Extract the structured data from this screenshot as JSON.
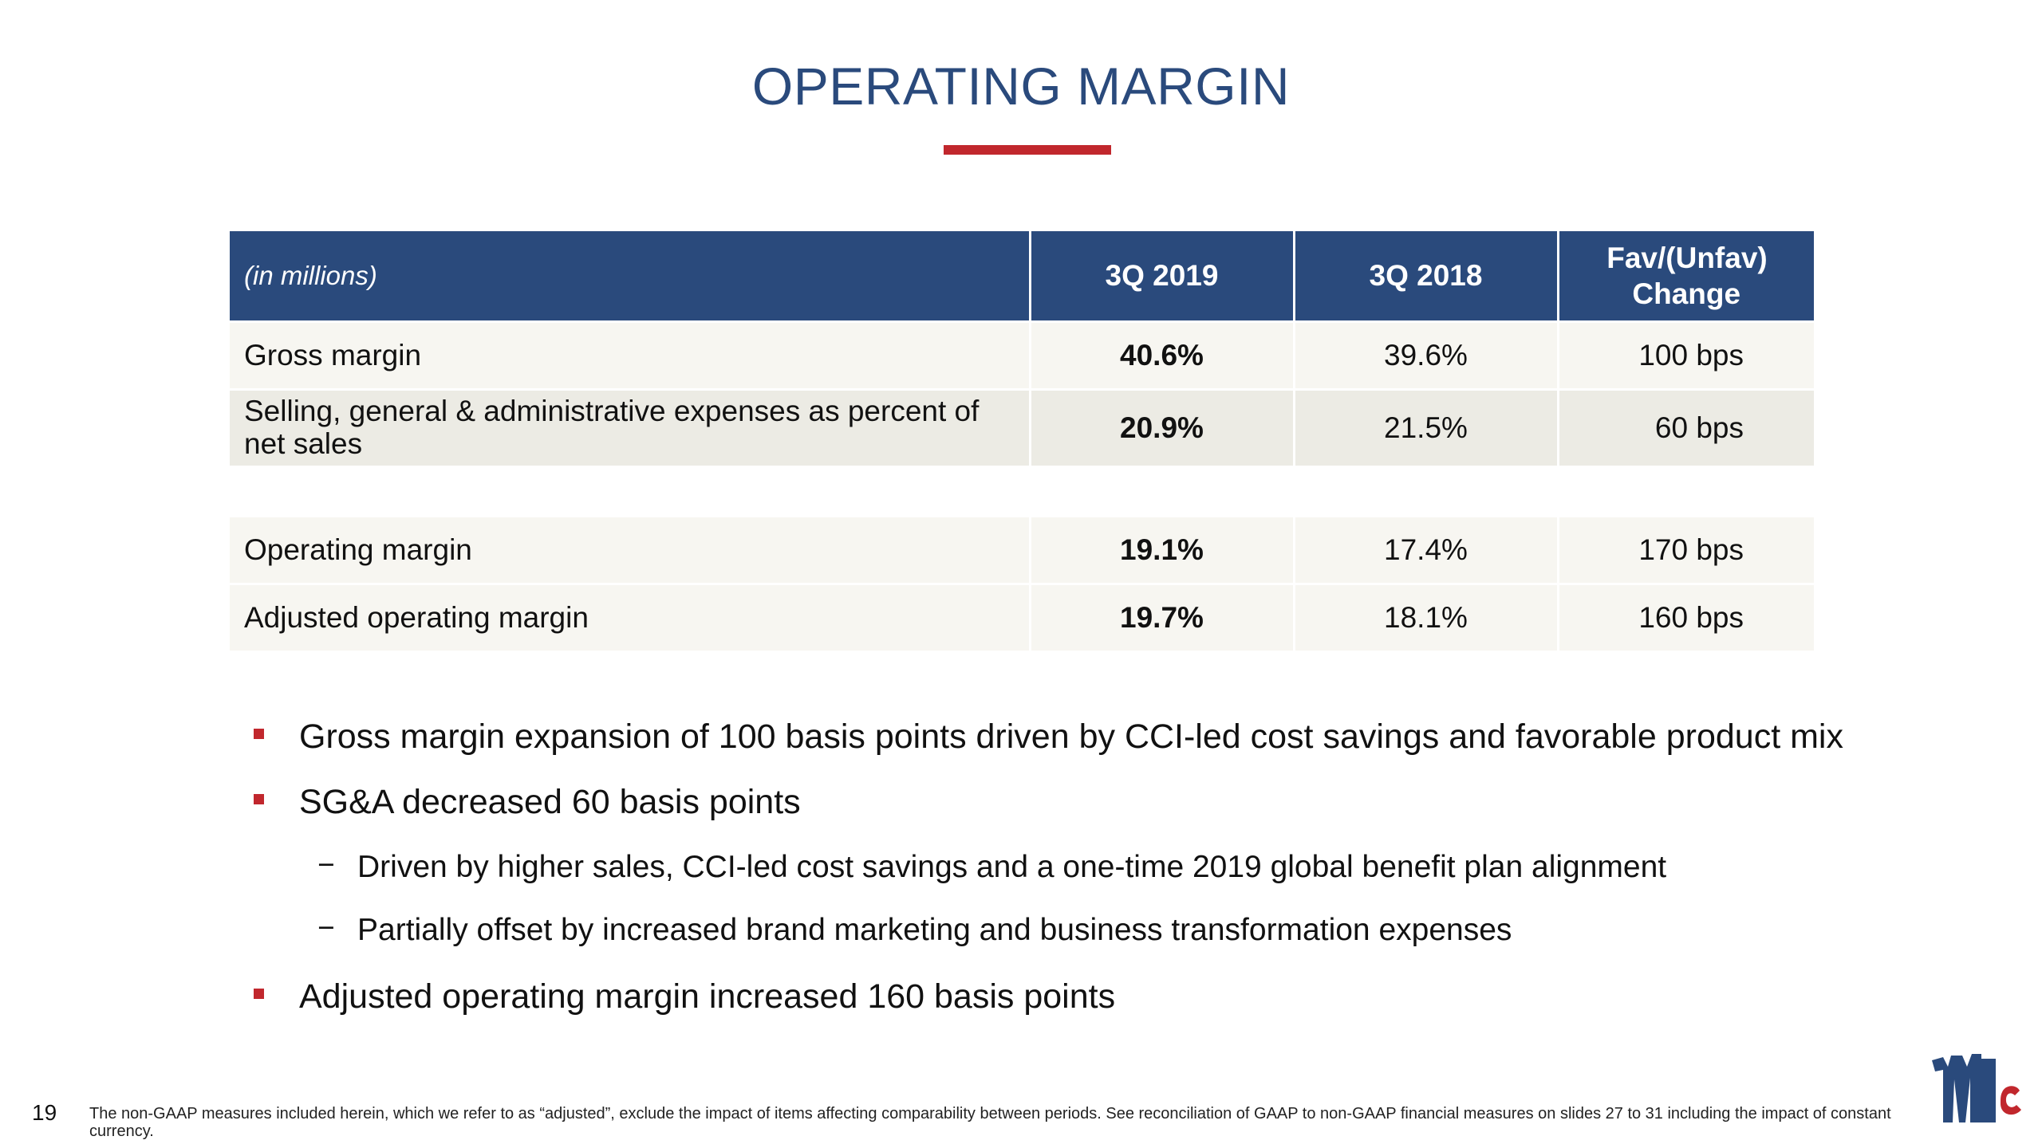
{
  "slide": {
    "title": "OPERATING MARGIN",
    "page_number": "19",
    "footnote": "The non-GAAP measures included herein, which we refer to as “adjusted”, exclude the impact of items affecting comparability between periods. See reconciliation of GAAP to non-GAAP financial measures on slides 27 to 31 including the impact of constant currency."
  },
  "table": {
    "headers": [
      "(in millions)",
      "3Q 2019",
      "3Q 2018",
      "Fav/(Unfav) Change"
    ],
    "rows": [
      {
        "label": "Gross margin",
        "q2019": "40.6%",
        "q2018": "39.6%",
        "change": "100 bps"
      },
      {
        "label": "Selling, general & administrative expenses as percent of net sales",
        "q2019": "20.9%",
        "q2018": "21.5%",
        "change": "60 bps"
      },
      {
        "label": "Operating margin",
        "q2019": "19.1%",
        "q2018": "17.4%",
        "change": "170 bps"
      },
      {
        "label": "Adjusted operating margin",
        "q2019": "19.7%",
        "q2018": "18.1%",
        "change": "160 bps"
      }
    ]
  },
  "bullets": [
    {
      "text": "Gross margin expansion of 100 basis points driven by CCI-led cost savings and favorable product mix"
    },
    {
      "text": "SG&A decreased 60 basis points"
    },
    {
      "text": "Driven by higher sales, CCI-led cost savings and a one-time 2019 global benefit plan alignment"
    },
    {
      "text": "Partially offset by increased brand marketing and business transformation expenses"
    },
    {
      "text": "Adjusted operating margin increased 160 basis points"
    }
  ],
  "sub_marker": "−",
  "colors": {
    "navy": "#2a4a7c",
    "red": "#c1272d",
    "row_light": "#f7f6f1",
    "row_dark": "#ecebe4"
  },
  "logo": {
    "icon": "mccormick-logo-icon"
  }
}
